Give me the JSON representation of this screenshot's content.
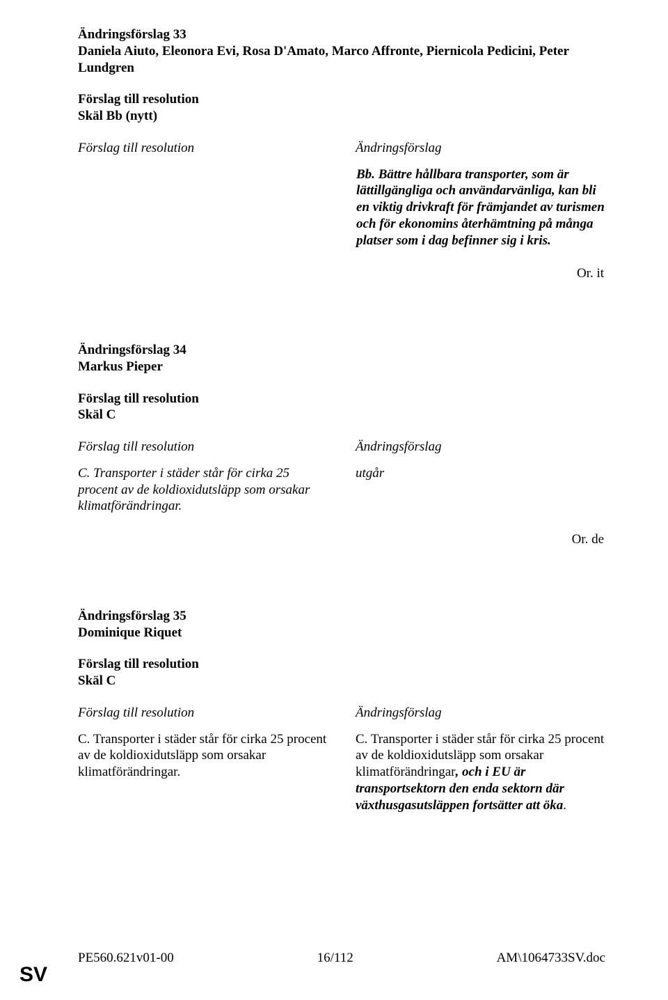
{
  "amend33": {
    "title": "Ändringsförslag 33",
    "authors": "Daniela Aiuto, Eleonora Evi, Rosa D'Amato, Marco Affronte, Piernicola Pedicini, Peter Lundgren",
    "proposal_heading": "Förslag till resolution",
    "location": "Skäl Bb (nytt)",
    "left_col_heading": "Förslag till resolution",
    "right_col_heading": "Ändringsförslag",
    "body_prefix": "Bb.",
    "body_text": " Bättre hållbara transporter, som är lättillgängliga och användarvänliga, kan bli en viktig drivkraft för främjandet av turismen och för ekonomins återhämtning på många platser som i dag befinner sig i kris.",
    "orlang": "Or. it"
  },
  "amend34": {
    "title": "Ändringsförslag 34",
    "authors": "Markus Pieper",
    "proposal_heading": "Förslag till resolution",
    "location": "Skäl C",
    "left_col_heading": "Förslag till resolution",
    "right_col_heading": "Ändringsförslag",
    "left_body": "C. Transporter i städer står för cirka 25 procent av de koldioxidutsläpp som orsakar klimatförändringar.",
    "right_body": "utgår",
    "orlang": "Or. de"
  },
  "amend35": {
    "title": "Ändringsförslag 35",
    "authors": "Dominique Riquet",
    "proposal_heading": "Förslag till resolution",
    "location": "Skäl C",
    "left_col_heading": "Förslag till resolution",
    "right_col_heading": "Ändringsförslag",
    "left_body": "C. Transporter i städer står för cirka 25 procent av de koldioxidutsläpp som orsakar klimatförändringar.",
    "right_prefix": "C. Transporter i städer står för cirka 25 procent av de koldioxidutsläpp som orsakar klimatförändringar",
    "right_bolditalic": ", och i EU är transportsektorn den enda sektorn där växthusgasutsläppen fortsätter att öka",
    "right_suffix": "."
  },
  "footer": {
    "left": "PE560.621v01-00",
    "center": "16/112",
    "right": "AM\\1064733SV.doc",
    "sv": "SV"
  }
}
